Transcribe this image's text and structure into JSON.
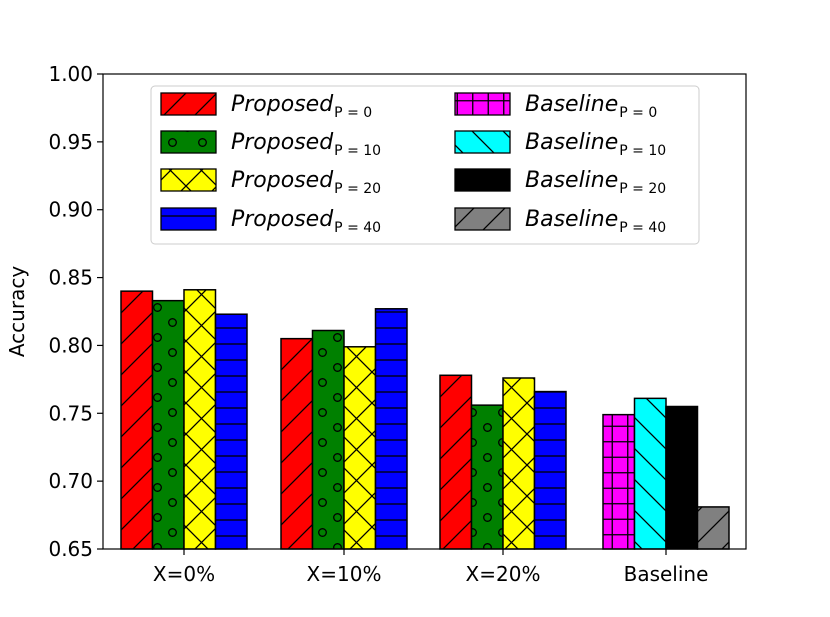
{
  "chart_data": {
    "type": "bar",
    "title": "",
    "xlabel": "",
    "ylabel": "Accuracy",
    "ylim": [
      0.65,
      1.0
    ],
    "yticks": [
      "0.65",
      "0.70",
      "0.75",
      "0.80",
      "0.85",
      "0.90",
      "0.95",
      "1.00"
    ],
    "grid": false,
    "legend_position": "top",
    "categories": [
      "X=0%",
      "X=10%",
      "X=20%",
      "Baseline"
    ],
    "groups": [
      {
        "category": "X=0%",
        "bars": [
          {
            "series": "proposed_p0",
            "value": 0.84
          },
          {
            "series": "proposed_p10",
            "value": 0.833
          },
          {
            "series": "proposed_p20",
            "value": 0.841
          },
          {
            "series": "proposed_p40",
            "value": 0.823
          }
        ]
      },
      {
        "category": "X=10%",
        "bars": [
          {
            "series": "proposed_p0",
            "value": 0.805
          },
          {
            "series": "proposed_p10",
            "value": 0.811
          },
          {
            "series": "proposed_p20",
            "value": 0.799
          },
          {
            "series": "proposed_p40",
            "value": 0.827
          }
        ]
      },
      {
        "category": "X=20%",
        "bars": [
          {
            "series": "proposed_p0",
            "value": 0.778
          },
          {
            "series": "proposed_p10",
            "value": 0.756
          },
          {
            "series": "proposed_p20",
            "value": 0.776
          },
          {
            "series": "proposed_p40",
            "value": 0.766
          }
        ]
      },
      {
        "category": "Baseline",
        "bars": [
          {
            "series": "baseline_p0",
            "value": 0.749
          },
          {
            "series": "baseline_p10",
            "value": 0.761
          },
          {
            "series": "baseline_p20",
            "value": 0.755
          },
          {
            "series": "baseline_p40",
            "value": 0.681
          }
        ]
      }
    ],
    "series": [
      {
        "id": "proposed_p0",
        "name_main": "Proposed",
        "name_sub": "P = 0",
        "color": "#ff0000",
        "hatch": "diagonal"
      },
      {
        "id": "proposed_p10",
        "name_main": "Proposed",
        "name_sub": "P = 10",
        "color": "#008000",
        "hatch": "circles"
      },
      {
        "id": "proposed_p20",
        "name_main": "Proposed",
        "name_sub": "P = 20",
        "color": "#ffff00",
        "hatch": "cross"
      },
      {
        "id": "proposed_p40",
        "name_main": "Proposed",
        "name_sub": "P = 40",
        "color": "#0000ff",
        "hatch": "horizontal"
      },
      {
        "id": "baseline_p0",
        "name_main": "Baseline",
        "name_sub": "P = 0",
        "color": "#ff00ff",
        "hatch": "grid"
      },
      {
        "id": "baseline_p10",
        "name_main": "Baseline",
        "name_sub": "P = 10",
        "color": "#00ffff",
        "hatch": "backslash"
      },
      {
        "id": "baseline_p20",
        "name_main": "Baseline",
        "name_sub": "P = 20",
        "color": "#000000",
        "hatch": "none"
      },
      {
        "id": "baseline_p40",
        "name_main": "Baseline",
        "name_sub": "P = 40",
        "color": "#808080",
        "hatch": "diagonal"
      }
    ]
  }
}
